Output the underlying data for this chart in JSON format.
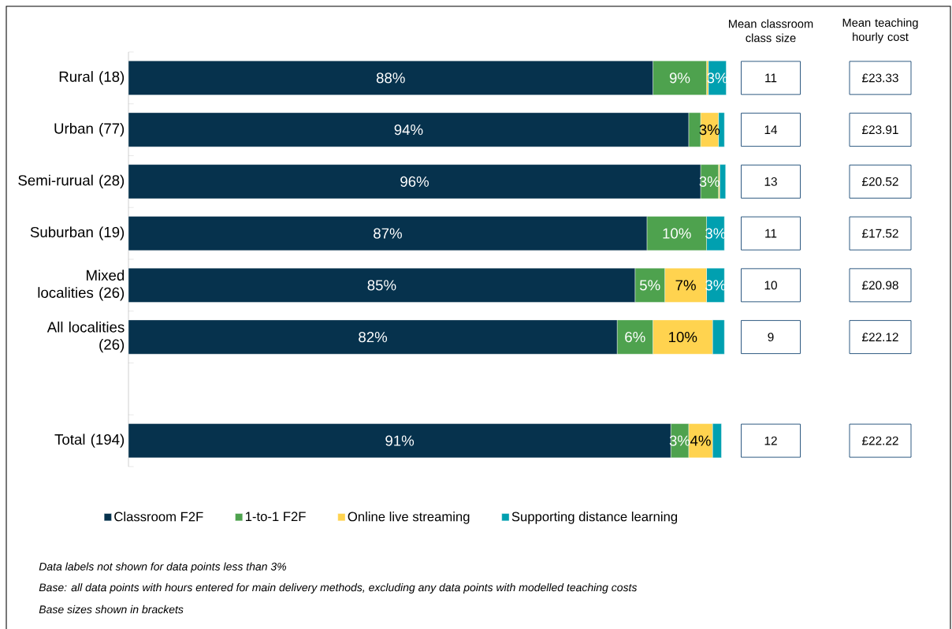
{
  "chart_data": {
    "type": "bar",
    "orientation": "horizontal",
    "stacked": true,
    "categories": [
      "Rural (18)",
      "Urban (77)",
      "Semi-rurual (28)",
      "Suburban (19)",
      "Mixed localities (26)",
      "All localities (26)",
      null,
      "Total (194)"
    ],
    "series": [
      {
        "name": "Classroom F2F",
        "color": "#06324d",
        "values": [
          88,
          94,
          96,
          87,
          85,
          82,
          null,
          91
        ],
        "value_labels": [
          "88%",
          "94%",
          "96%",
          "87%",
          "85%",
          "82%",
          null,
          "91%"
        ]
      },
      {
        "name": "1-to-1 F2F",
        "color": "#4ea24e",
        "values": [
          9,
          2,
          3,
          10,
          5,
          6,
          null,
          3
        ],
        "value_labels": [
          "9%",
          null,
          "3%",
          "10%",
          "5%",
          "6%",
          null,
          "3%"
        ]
      },
      {
        "name": "Online live streaming",
        "color": "#ffd34f",
        "values": [
          0.3,
          3,
          0.2,
          0,
          7,
          10,
          null,
          4
        ],
        "value_labels": [
          null,
          "3%",
          null,
          null,
          "7%",
          "10%",
          null,
          "4%"
        ]
      },
      {
        "name": "Supporting distance learning",
        "color": "#00a0b0",
        "values": [
          3,
          1,
          1,
          3,
          3,
          2,
          null,
          1.5
        ],
        "value_labels": [
          "3%",
          null,
          null,
          "3%",
          "3%",
          null,
          null,
          null
        ]
      }
    ],
    "xlim": [
      0,
      100.5
    ],
    "tick_labels": "y",
    "legend": "bottom",
    "annotations": [
      "Mean classroom class size",
      "Mean teaching hourly cost",
      "11",
      "14",
      "13",
      "11",
      "10",
      "9",
      "12",
      "£23.33",
      "£23.91",
      "£20.52",
      "£17.52",
      "£20.98",
      "£22.12",
      "£22.22",
      "Data labels not shown for data points less than 3%",
      "Base: all data points with hours entered for main delivery methods, excluding any data points with modelled teaching costs",
      "Base sizes shown in brackets"
    ]
  }
}
